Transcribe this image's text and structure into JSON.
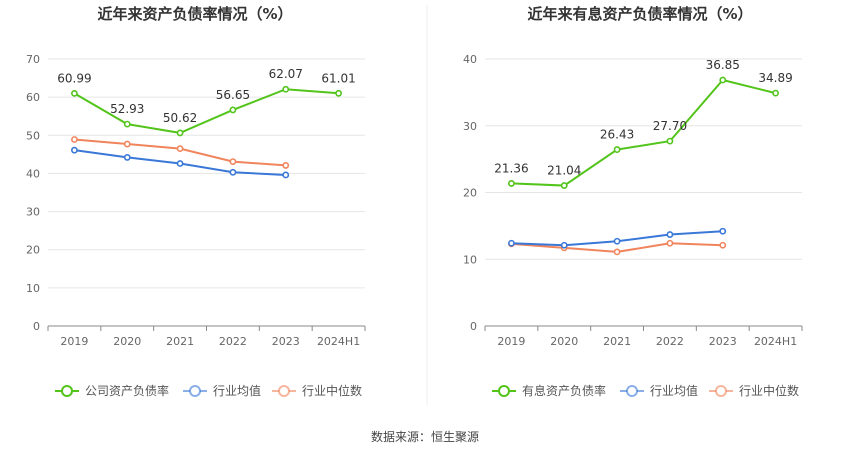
{
  "source_prefix": "数据来源：",
  "source_name": "恒生聚源",
  "chart_data": [
    {
      "type": "line",
      "title": "近年来资产负债率情况（%）",
      "categories": [
        "2019",
        "2020",
        "2021",
        "2022",
        "2023",
        "2024H1"
      ],
      "ylim": [
        0,
        70
      ],
      "yticks": [
        0,
        10,
        20,
        30,
        40,
        50,
        60,
        70
      ],
      "grid": true,
      "legend_position": "bottom",
      "series": [
        {
          "name": "公司资产负债率",
          "color": "#52c41a",
          "labeled": true,
          "values": [
            60.99,
            52.93,
            50.62,
            56.65,
            62.07,
            61.01
          ],
          "labels": [
            "60.99",
            "52.93",
            "50.62",
            "56.65",
            "62.07",
            "61.01"
          ]
        },
        {
          "name": "行业均值",
          "color": "#3a78d8",
          "labeled": false,
          "values": [
            46.1,
            44.2,
            42.6,
            40.3,
            39.6,
            null
          ]
        },
        {
          "name": "行业中位数",
          "color": "#f0845c",
          "labeled": false,
          "values": [
            48.9,
            47.7,
            46.5,
            43.1,
            42.1,
            null
          ]
        }
      ]
    },
    {
      "type": "line",
      "title": "近年来有息资产负债率情况（%）",
      "categories": [
        "2019",
        "2020",
        "2021",
        "2022",
        "2023",
        "2024H1"
      ],
      "ylim": [
        0,
        40
      ],
      "yticks": [
        0,
        10,
        20,
        30,
        40
      ],
      "grid": true,
      "legend_position": "bottom",
      "series": [
        {
          "name": "有息资产负债率",
          "color": "#52c41a",
          "labeled": true,
          "values": [
            21.36,
            21.04,
            26.43,
            27.7,
            36.85,
            34.89
          ],
          "labels": [
            "21.36",
            "21.04",
            "26.43",
            "27.70",
            "36.85",
            "34.89"
          ]
        },
        {
          "name": "行业均值",
          "color": "#3a78d8",
          "labeled": false,
          "values": [
            12.4,
            12.1,
            12.7,
            13.7,
            14.2,
            null
          ]
        },
        {
          "name": "行业中位数",
          "color": "#f0845c",
          "labeled": false,
          "values": [
            12.3,
            11.7,
            11.1,
            12.4,
            12.1,
            null
          ]
        }
      ]
    }
  ]
}
